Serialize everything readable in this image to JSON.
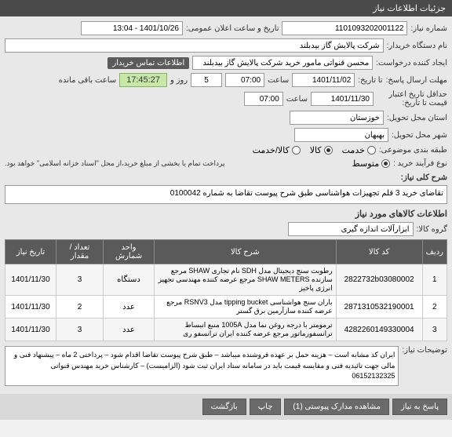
{
  "header": {
    "title": "جزئیات اطلاعات نیاز"
  },
  "fields": {
    "request_no_label": "شماره نیاز:",
    "request_no": "1101093202001122",
    "announce_label": "تاریخ و ساعت اعلان عمومی:",
    "announce": "1401/10/26 - 13:04",
    "buyer_label": "نام دستگاه خریدار:",
    "buyer": "شرکت پالایش گاز بیدبلند",
    "creator_label": "ایجاد کننده درخواست:",
    "creator": "محسن قنواتی مامور خرید شرکت پالایش گاز بیدبلند",
    "contact_badge": "اطلاعات تماس خریدار",
    "deadline_label": "مهلت ارسال پاسخ:",
    "deadline_date_label": "تا تاریخ:",
    "deadline_date": "1401/11/02",
    "time_label": "ساعت",
    "deadline_time": "07:00",
    "days": "5",
    "days_label": "روز و",
    "remain_time": "17:45:27",
    "remain_label": "ساعت باقی مانده",
    "validity_label": "حداقل تاریخ اعتبار",
    "validity_sub": "قیمت تا تاریخ:",
    "validity_date": "1401/11/30",
    "validity_time": "07:00",
    "province_label": "استان محل تحویل:",
    "province": "خوزستان",
    "city_label": "شهر محل تحویل:",
    "city": "بهبهان",
    "subject_label": "طبقه بندی موضوعی:",
    "subject_service": "خدمت",
    "subject_goods": "کالا",
    "subject_mixed": "کالا/خدمت",
    "buy_type_label": "نوع فرآیند خرید :",
    "buy_type_mid": "متوسط",
    "buy_type_note": "پرداخت تمام یا بخشی از مبلغ خرید،از محل \"اسناد خزانه اسلامی\" خواهد بود.",
    "desc_title_label": "شرح کلی نیاز:",
    "desc_title": "تقاضای خرید 3 قلم تجهیزات هواشناسی طبق شرح پیوست تقاضا به شماره 0100042",
    "items_header": "اطلاعات کالاهای مورد نیاز",
    "group_label": "گروه کالا:",
    "group": "ابزارآلات اندازه گیری",
    "notes_label": "توضیحات نیاز:",
    "notes": "ایران کد مشابه است – هزینه حمل بر عهده فروشنده میباشد – طبق شرح پیوست تقاضا اقدام شود – پرداختی 2 ماه – پیشنهاد فنی و مالی جهت تائیدیه فنی و مقایسه قیمت باید در سامانه ستاد ایران ثبت شود (الزامیست) – کارشناس خرید مهندس قنواتی 06152132325"
  },
  "table": {
    "headers": [
      "ردیف",
      "کد کالا",
      "شرح کالا",
      "واحد شمارش",
      "تعداد / مقدار",
      "تاریخ نیاز"
    ],
    "rows": [
      {
        "n": "1",
        "code": "2822732b03080002",
        "desc": "رطوبت سنج دیجیتال مدل SDH نام تجاری SHAW مرجع سازنده SHAW METERS مرجع عرضه کننده مهندسی تجهیز انرژی پاخیز",
        "unit": "دستگاه",
        "qty": "3",
        "date": "1401/11/30"
      },
      {
        "n": "2",
        "code": "2871310532190001",
        "desc": "باران سنج هواشناسی tipping bucket مدل RSNV3 مرجع عرضه کننده سازآرمین برق گستر",
        "unit": "عدد",
        "qty": "2",
        "date": "1401/11/30"
      },
      {
        "n": "3",
        "code": "4282260149330004",
        "desc": "ترمومتر با درجه روغن نما مدل 1005A منبع انبساط ترانسفورماتور مرجع عرضه کننده ایران ترانسفو ری",
        "unit": "عدد",
        "qty": "3",
        "date": "1401/11/30"
      }
    ]
  },
  "buttons": {
    "reply": "پاسخ به نیاز",
    "attach": "مشاهده مدارک پیوستی (1)",
    "print": "چاپ",
    "back": "بازگشت"
  }
}
